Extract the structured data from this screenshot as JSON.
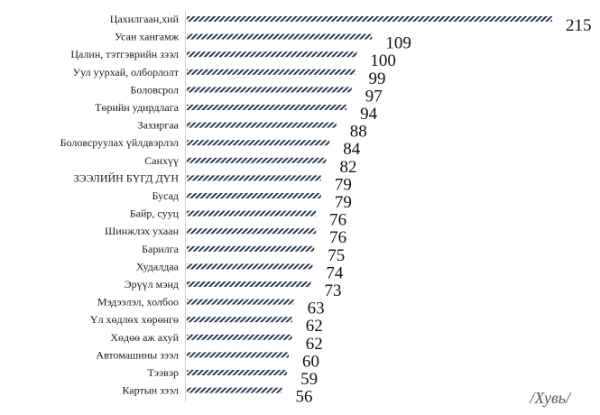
{
  "chart_data": {
    "type": "bar",
    "orientation": "horizontal",
    "categories": [
      "Цахилгаан,хий",
      "Усан хангамж",
      "Цалин, тэтгэврийн зээл",
      "Уул уурхай, олборлолт",
      "Боловсрол",
      "Төрийн удирдлага",
      "Захиргаа",
      "Боловсруулах үйлдвэрлэл",
      "Санхүү",
      "ЗЭЭЛИЙН БҮГД ДҮН",
      "Бусад",
      "Байр, сууц",
      "Шинжлэх ухаан",
      "Барилга",
      "Худалдаа",
      "Эрүүл мэнд",
      "Мэдээлэл, холбоо",
      "Үл хөдлөх хөрөнгө",
      "Хөдөө аж ахуй",
      "Автомашины зээл",
      "Тээвэр",
      "Картын зээл"
    ],
    "values": [
      215,
      109,
      100,
      99,
      97,
      94,
      88,
      84,
      82,
      79,
      79,
      76,
      76,
      75,
      74,
      73,
      63,
      62,
      62,
      60,
      59,
      56
    ],
    "xlim": [
      0,
      215
    ],
    "grid": false,
    "bar_color": "#2f3b55",
    "bar_pattern": "diagonal-hatch",
    "unit_note": "/Хувь/"
  }
}
